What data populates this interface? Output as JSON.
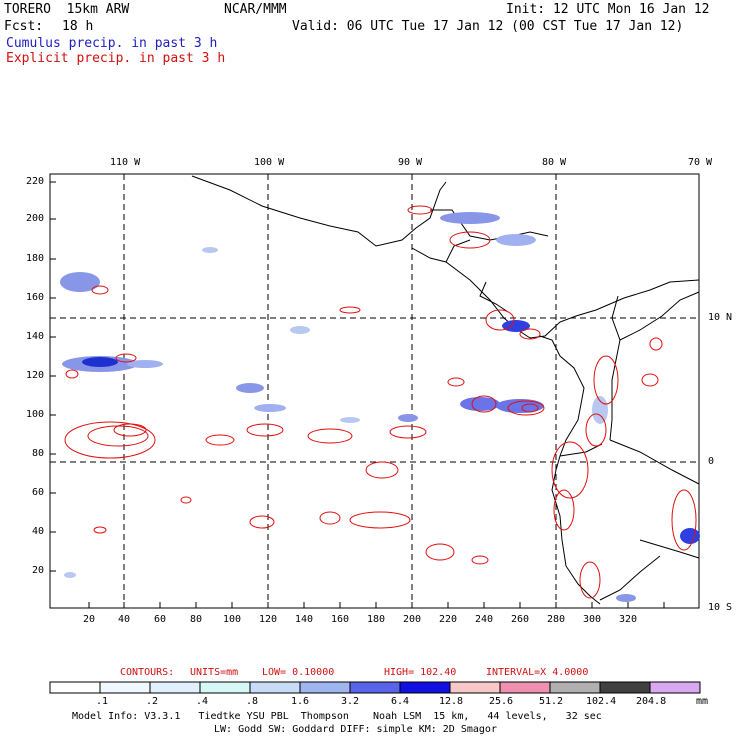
{
  "header": {
    "model": "TORERO  15km ARW",
    "org": "NCAR/MMM",
    "init": "Init: 12 UTC Mon 16 Jan 12",
    "fcst_label": "Fcst:",
    "fcst_value": "18 h",
    "valid": "Valid: 06 UTC Tue 17 Jan 12 (00 CST Tue 17 Jan 12)",
    "cumulus": "Cumulus precip. in past 3 h",
    "explicit": "Explicit precip. in past 3 h"
  },
  "lon_labels": [
    "110 W",
    "100 W",
    "90 W",
    "80 W",
    "70 W"
  ],
  "lat_labels": [
    "10 N",
    "0",
    "10 S"
  ],
  "y_ticks": [
    "220",
    "200",
    "180",
    "160",
    "140",
    "120",
    "100",
    "80",
    "60",
    "40",
    "20"
  ],
  "x_ticks": [
    "20",
    "40",
    "60",
    "80",
    "100",
    "120",
    "140",
    "160",
    "180",
    "200",
    "220",
    "240",
    "260",
    "280",
    "300",
    "320"
  ],
  "contours": {
    "label": "CONTOURS:",
    "units": "UNITS=mm",
    "low": "LOW= 0.10000",
    "high": "HIGH= 102.40",
    "interval": "INTERVAL=X 4.0000"
  },
  "colorbar": {
    "labels": [
      ".1",
      ".2",
      ".4",
      ".8",
      "1.6",
      "3.2",
      "6.4",
      "12.8",
      "25.6",
      "51.2",
      "102.4",
      "204.8"
    ],
    "units": "mm",
    "colors": [
      "#ffffff",
      "#f0f8ff",
      "#e0f0ff",
      "#d8f8f8",
      "#c8dcf8",
      "#a0b4f0",
      "#5a64e8",
      "#1010e0",
      "#f8c8c8",
      "#f090b0",
      "#b0b0b0",
      "#404040",
      "#d8a8f0"
    ]
  },
  "footer": {
    "line1": "Model Info: V3.3.1   Tiedtke YSU PBL  Thompson    Noah LSM  15 km,   44 levels,   32 sec",
    "line2": "LW: Godd SW: Goddard DIFF: simple KM: 2D Smagor"
  }
}
